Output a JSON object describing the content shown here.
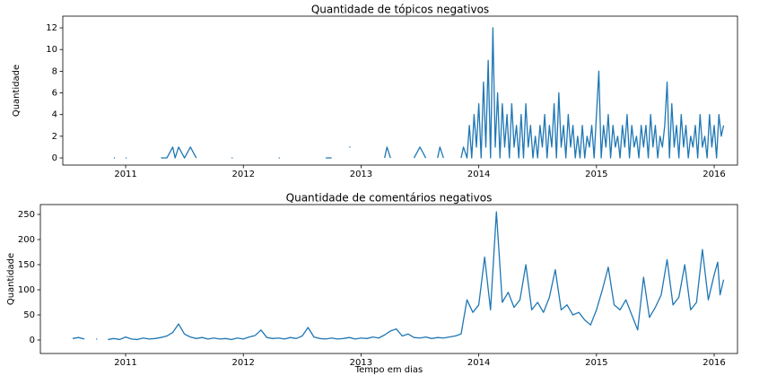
{
  "chart_data": [
    {
      "type": "line",
      "title": "Quantidade de tópicos negativos",
      "ylabel": "Quantidade",
      "color": "#1f77b4",
      "xlim": [
        2010.466,
        2016.198
      ],
      "ylim": [
        -0.66,
        13.08
      ],
      "xticks": [
        2011,
        2012,
        2013,
        2014,
        2015,
        2016
      ],
      "yticks": [
        0,
        2,
        4,
        6,
        8,
        10,
        12
      ],
      "x": [
        2010.9,
        2010.95,
        2011.0,
        2011.15,
        2011.3,
        2011.35,
        2011.4,
        2011.42,
        2011.45,
        2011.5,
        2011.55,
        2011.6,
        2011.75,
        2011.9,
        2012.1,
        2012.3,
        2012.5,
        2012.7,
        2012.75,
        2012.82,
        2012.9,
        2013.05,
        2013.2,
        2013.22,
        2013.25,
        2013.35,
        2013.45,
        2013.5,
        2013.55,
        2013.6,
        2013.65,
        2013.67,
        2013.7,
        2013.78,
        2013.85,
        2013.87,
        2013.9,
        2013.92,
        2013.94,
        2013.96,
        2013.98,
        2014.0,
        2014.02,
        2014.04,
        2014.06,
        2014.08,
        2014.1,
        2014.12,
        2014.14,
        2014.16,
        2014.18,
        2014.2,
        2014.22,
        2014.24,
        2014.26,
        2014.28,
        2014.3,
        2014.32,
        2014.34,
        2014.36,
        2014.38,
        2014.4,
        2014.42,
        2014.44,
        2014.46,
        2014.48,
        2014.5,
        2014.52,
        2014.54,
        2014.56,
        2014.58,
        2014.6,
        2014.62,
        2014.64,
        2014.66,
        2014.68,
        2014.7,
        2014.72,
        2014.74,
        2014.76,
        2014.78,
        2014.8,
        2014.82,
        2014.84,
        2014.86,
        2014.88,
        2014.9,
        2014.92,
        2014.94,
        2014.96,
        2014.98,
        2015.0,
        2015.02,
        2015.04,
        2015.06,
        2015.08,
        2015.1,
        2015.12,
        2015.14,
        2015.16,
        2015.18,
        2015.2,
        2015.22,
        2015.24,
        2015.26,
        2015.28,
        2015.3,
        2015.32,
        2015.34,
        2015.36,
        2015.38,
        2015.4,
        2015.42,
        2015.44,
        2015.46,
        2015.48,
        2015.5,
        2015.52,
        2015.54,
        2015.56,
        2015.58,
        2015.6,
        2015.62,
        2015.64,
        2015.66,
        2015.68,
        2015.7,
        2015.72,
        2015.74,
        2015.76,
        2015.78,
        2015.8,
        2015.82,
        2015.84,
        2015.86,
        2015.88,
        2015.9,
        2015.92,
        2015.94,
        2015.96,
        2015.98,
        2016.0,
        2016.02,
        2016.04,
        2016.06,
        2016.08
      ],
      "values": [
        0,
        null,
        0,
        null,
        0,
        0,
        1,
        0,
        1,
        0,
        1,
        0,
        null,
        0,
        null,
        0,
        null,
        0,
        0,
        null,
        1,
        null,
        0,
        1,
        0,
        null,
        0,
        1,
        0,
        null,
        0,
        1,
        0,
        null,
        0,
        1,
        0,
        3,
        0,
        4,
        1,
        5,
        0,
        7,
        1,
        9,
        0,
        12,
        1,
        6,
        0,
        5,
        1,
        4,
        0,
        5,
        1,
        3,
        0,
        4,
        0,
        5,
        1,
        3,
        0,
        2,
        0,
        3,
        1,
        4,
        0,
        3,
        1,
        5,
        0,
        6,
        1,
        3,
        0,
        4,
        1,
        3,
        0,
        2,
        0,
        3,
        0,
        2,
        1,
        3,
        0,
        4,
        8,
        0,
        3,
        1,
        4,
        0,
        3,
        1,
        2,
        0,
        3,
        1,
        4,
        0,
        3,
        1,
        2,
        0,
        3,
        1,
        3,
        0,
        4,
        1,
        3,
        0,
        2,
        1,
        3,
        7,
        0,
        5,
        1,
        3,
        0,
        4,
        1,
        3,
        0,
        2,
        1,
        3,
        0,
        4,
        1,
        2,
        0,
        4,
        1,
        3,
        0,
        4,
        2,
        3
      ]
    },
    {
      "type": "line",
      "title": "Quantidade de comentários negativos",
      "ylabel": "Quantidade",
      "xlabel": "Tempo em dias",
      "color": "#1f77b4",
      "xlim": [
        2010.276,
        2016.198
      ],
      "ylim": [
        -26.8,
        269.6
      ],
      "xticks": [
        2011,
        2012,
        2013,
        2014,
        2015,
        2016
      ],
      "yticks": [
        0,
        50,
        100,
        150,
        200,
        250
      ],
      "x": [
        2010.55,
        2010.6,
        2010.65,
        2010.7,
        2010.75,
        2010.8,
        2010.85,
        2010.9,
        2010.95,
        2011.0,
        2011.05,
        2011.1,
        2011.15,
        2011.2,
        2011.25,
        2011.3,
        2011.35,
        2011.4,
        2011.45,
        2011.5,
        2011.55,
        2011.6,
        2011.65,
        2011.7,
        2011.75,
        2011.8,
        2011.85,
        2011.9,
        2011.95,
        2012.0,
        2012.05,
        2012.1,
        2012.15,
        2012.2,
        2012.25,
        2012.3,
        2012.35,
        2012.4,
        2012.45,
        2012.5,
        2012.55,
        2012.6,
        2012.65,
        2012.7,
        2012.75,
        2012.8,
        2012.85,
        2012.9,
        2012.95,
        2013.0,
        2013.05,
        2013.1,
        2013.15,
        2013.2,
        2013.25,
        2013.3,
        2013.35,
        2013.4,
        2013.45,
        2013.5,
        2013.55,
        2013.6,
        2013.65,
        2013.7,
        2013.75,
        2013.8,
        2013.85,
        2013.9,
        2013.95,
        2014.0,
        2014.05,
        2014.1,
        2014.15,
        2014.2,
        2014.25,
        2014.3,
        2014.35,
        2014.4,
        2014.45,
        2014.5,
        2014.55,
        2014.6,
        2014.65,
        2014.7,
        2014.75,
        2014.8,
        2014.85,
        2014.9,
        2014.95,
        2015.0,
        2015.05,
        2015.1,
        2015.15,
        2015.2,
        2015.25,
        2015.3,
        2015.35,
        2015.4,
        2015.45,
        2015.5,
        2015.55,
        2015.6,
        2015.65,
        2015.7,
        2015.75,
        2015.8,
        2015.85,
        2015.9,
        2015.95,
        2016.0,
        2016.03,
        2016.05,
        2016.08
      ],
      "values": [
        3,
        5,
        2,
        null,
        2,
        null,
        1,
        3,
        1,
        6,
        2,
        1,
        4,
        2,
        3,
        5,
        8,
        15,
        32,
        12,
        6,
        3,
        5,
        2,
        4,
        2,
        3,
        1,
        4,
        2,
        6,
        9,
        20,
        5,
        3,
        4,
        2,
        5,
        3,
        8,
        25,
        6,
        3,
        2,
        4,
        2,
        3,
        5,
        2,
        4,
        3,
        6,
        4,
        10,
        18,
        22,
        8,
        12,
        5,
        4,
        6,
        3,
        5,
        4,
        6,
        8,
        12,
        80,
        55,
        70,
        165,
        60,
        255,
        75,
        95,
        65,
        80,
        150,
        60,
        75,
        55,
        85,
        140,
        60,
        70,
        50,
        55,
        40,
        30,
        60,
        100,
        145,
        70,
        60,
        80,
        50,
        20,
        125,
        45,
        65,
        90,
        160,
        70,
        85,
        150,
        60,
        75,
        180,
        80,
        130,
        155,
        90,
        120
      ]
    }
  ]
}
